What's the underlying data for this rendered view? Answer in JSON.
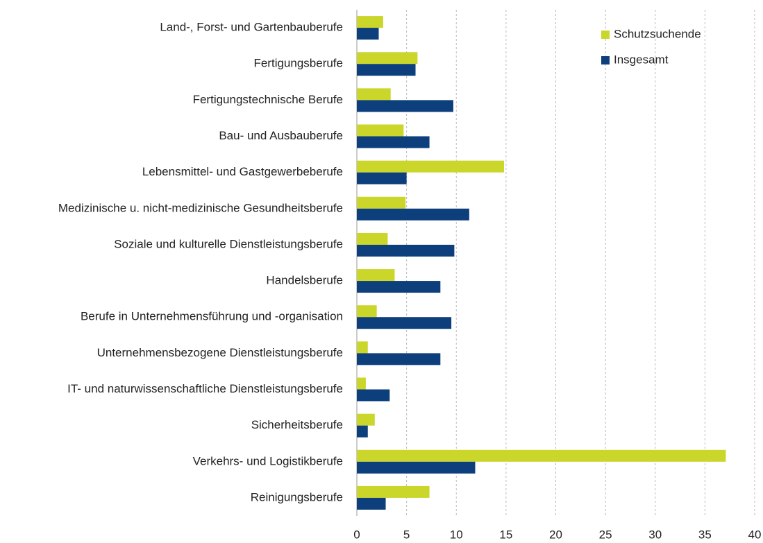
{
  "chart_data": {
    "type": "hbar",
    "categories": [
      "Land-, Forst- und Gartenbauberufe",
      "Fertigungsberufe",
      "Fertigungstechnische Berufe",
      "Bau- und Ausbauberufe",
      "Lebensmittel- und Gastgewerbeberufe",
      "Medizinische u. nicht-medizinische Gesundheitsberufe",
      "Soziale und kulturelle Dienstleistungsberufe",
      "Handelsberufe",
      "Berufe in Unternehmensführung und -organisation",
      "Unternehmensbezogene Dienstleistungsberufe",
      "IT- und naturwissenschaftliche Dienstleistungsberufe",
      "Sicherheitsberufe",
      "Verkehrs- und Logistikberufe",
      "Reinigungsberufe"
    ],
    "series": [
      {
        "name": "Schutzsuchende",
        "color": "#cbd62b",
        "values": [
          2.65,
          6.1,
          3.4,
          4.7,
          14.8,
          4.9,
          3.1,
          3.8,
          2.0,
          1.1,
          0.9,
          1.8,
          37.1,
          7.3
        ]
      },
      {
        "name": "Insgesamt",
        "color": "#0d3f7d",
        "values": [
          2.2,
          5.9,
          9.7,
          7.3,
          5.0,
          11.3,
          9.8,
          8.4,
          9.5,
          8.4,
          3.3,
          1.1,
          11.9,
          2.9
        ]
      }
    ],
    "xlim": [
      0,
      40
    ],
    "xticks": [
      0,
      5,
      10,
      15,
      20,
      25,
      30,
      35,
      40
    ],
    "grid": true,
    "legend": "upper right"
  }
}
